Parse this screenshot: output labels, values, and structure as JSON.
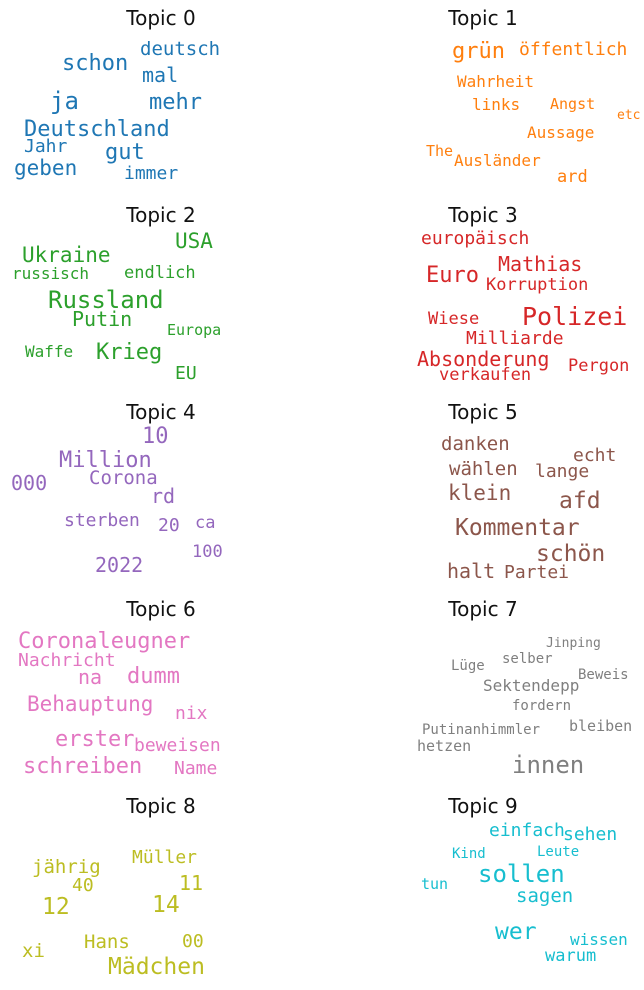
{
  "topics": [
    {
      "title": "Topic 0",
      "color": "#1f77b4",
      "words": [
        "deutsch",
        "schon",
        "mal",
        "ja",
        "mehr",
        "Deutschland",
        "Jahr",
        "gut",
        "geben",
        "immer"
      ]
    },
    {
      "title": "Topic 1",
      "color": "#ff7f0e",
      "words": [
        "grün",
        "öffentlich",
        "Wahrheit",
        "links",
        "Angst",
        "etc",
        "Aussage",
        "The",
        "Ausländer",
        "ard"
      ]
    },
    {
      "title": "Topic 2",
      "color": "#2ca02c",
      "words": [
        "USA",
        "Ukraine",
        "russisch",
        "endlich",
        "Russland",
        "Putin",
        "Europa",
        "Waffe",
        "Krieg",
        "EU"
      ]
    },
    {
      "title": "Topic 3",
      "color": "#d62728",
      "words": [
        "europäisch",
        "Mathias",
        "Euro",
        "Korruption",
        "Wiese",
        "Polizei",
        "Milliarde",
        "Absonderung",
        "Pergon",
        "verkaufen"
      ]
    },
    {
      "title": "Topic 4",
      "color": "#9467bd",
      "words": [
        "10",
        "Million",
        "000",
        "Corona",
        "rd",
        "sterben",
        "20",
        "ca",
        "100",
        "2022"
      ]
    },
    {
      "title": "Topic 5",
      "color": "#8c564b",
      "words": [
        "danken",
        "echt",
        "wählen",
        "lange",
        "klein",
        "afd",
        "Kommentar",
        "schön",
        "halt",
        "Partei"
      ]
    },
    {
      "title": "Topic 6",
      "color": "#e377c2",
      "words": [
        "Coronaleugner",
        "Nachricht",
        "na",
        "dumm",
        "Behauptung",
        "nix",
        "erster",
        "beweisen",
        "schreiben",
        "Name"
      ]
    },
    {
      "title": "Topic 7",
      "color": "#7f7f7f",
      "words": [
        "Jinping",
        "selber",
        "Lüge",
        "Beweis",
        "Sektendepp",
        "fordern",
        "Putinanhimmler",
        "bleiben",
        "hetzen",
        "innen"
      ]
    },
    {
      "title": "Topic 8",
      "color": "#bcbd22",
      "words": [
        "Müller",
        "jährig",
        "11",
        "40",
        "12",
        "14",
        "Hans",
        "00",
        "xi",
        "Mädchen"
      ]
    },
    {
      "title": "Topic 9",
      "color": "#17becf",
      "words": [
        "einfach",
        "sehen",
        "Kind",
        "Leute",
        "sollen",
        "tun",
        "sagen",
        "wer",
        "wissen",
        "warum"
      ]
    }
  ]
}
